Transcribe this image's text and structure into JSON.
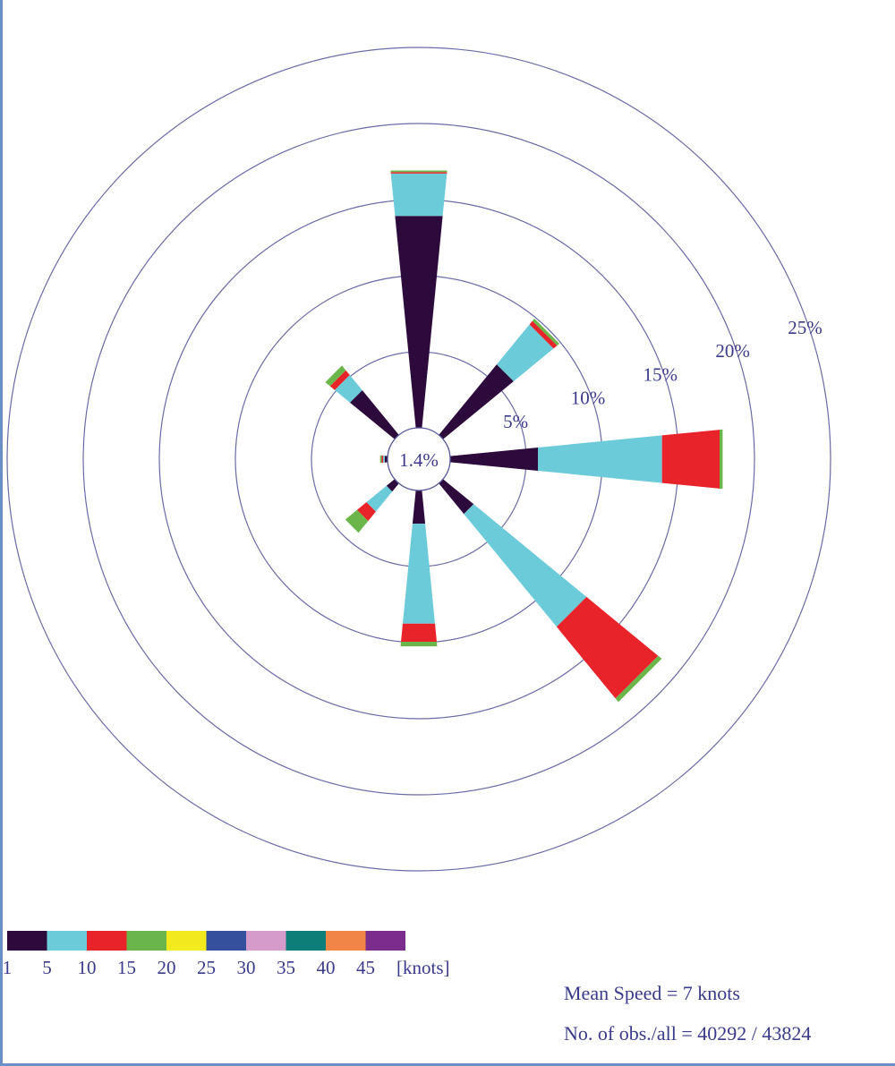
{
  "chart_data": {
    "type": "windrose",
    "calm_label": "1.4%",
    "calm_percent": 1.4,
    "ring_labels": [
      "5%",
      "10%",
      "15%",
      "20%",
      "25%"
    ],
    "ring_values": [
      5,
      10,
      15,
      20,
      25
    ],
    "speed_bins": {
      "ticks": [
        "1",
        "5",
        "10",
        "15",
        "20",
        "25",
        "30",
        "35",
        "40",
        "45"
      ],
      "unit_label": "[knots]",
      "colors": [
        "#2d0a3c",
        "#6ccbd9",
        "#e8242a",
        "#6ab64a",
        "#f2ea1c",
        "#35509c",
        "#d69cc9",
        "#0e7f78",
        "#f08646",
        "#7b2d8e"
      ]
    },
    "directions": [
      {
        "dir": "N",
        "bearing": 0,
        "cumulative": [
          14.0,
          16.8,
          16.9,
          17.0
        ]
      },
      {
        "dir": "NNE",
        "bearing": 22.5,
        "cumulative": [
          0,
          0,
          0,
          0
        ]
      },
      {
        "dir": "NE",
        "bearing": 45,
        "cumulative": [
          6.0,
          9.4,
          9.7,
          9.9
        ]
      },
      {
        "dir": "ENE",
        "bearing": 67.5,
        "cumulative": [
          0,
          0,
          0,
          0
        ]
      },
      {
        "dir": "E",
        "bearing": 90,
        "cumulative": [
          5.8,
          14.0,
          17.8,
          18.0
        ]
      },
      {
        "dir": "ESE",
        "bearing": 112.5,
        "cumulative": [
          0,
          0,
          0,
          0
        ]
      },
      {
        "dir": "SE",
        "bearing": 135,
        "cumulative": [
          2.6,
          12.2,
          18.3,
          18.6
        ]
      },
      {
        "dir": "SSE",
        "bearing": 157.5,
        "cumulative": [
          0,
          0,
          0,
          0
        ]
      },
      {
        "dir": "S",
        "bearing": 180,
        "cumulative": [
          2.2,
          8.8,
          10.0,
          10.3
        ]
      },
      {
        "dir": "SSW",
        "bearing": 202.5,
        "cumulative": [
          0,
          0,
          0,
          0
        ]
      },
      {
        "dir": "SW",
        "bearing": 225,
        "cumulative": [
          0.7,
          2.4,
          3.2,
          4.2
        ]
      },
      {
        "dir": "WSW",
        "bearing": 247.5,
        "cumulative": [
          0,
          0,
          0,
          0
        ]
      },
      {
        "dir": "W",
        "bearing": 270,
        "cumulative": [
          0.2,
          0.3,
          0.4,
          0.5
        ]
      },
      {
        "dir": "WNW",
        "bearing": 292.5,
        "cumulative": [
          0,
          0,
          0,
          0
        ]
      },
      {
        "dir": "NW",
        "bearing": 315,
        "cumulative": [
          3.8,
          5.1,
          5.5,
          5.9
        ]
      },
      {
        "dir": "NNW",
        "bearing": 337.5,
        "cumulative": [
          0,
          0,
          0,
          0
        ]
      }
    ]
  },
  "stats": {
    "mean_speed": "Mean Speed = 7 knots",
    "obs_count": "No. of obs./all = 40292 / 43824"
  }
}
